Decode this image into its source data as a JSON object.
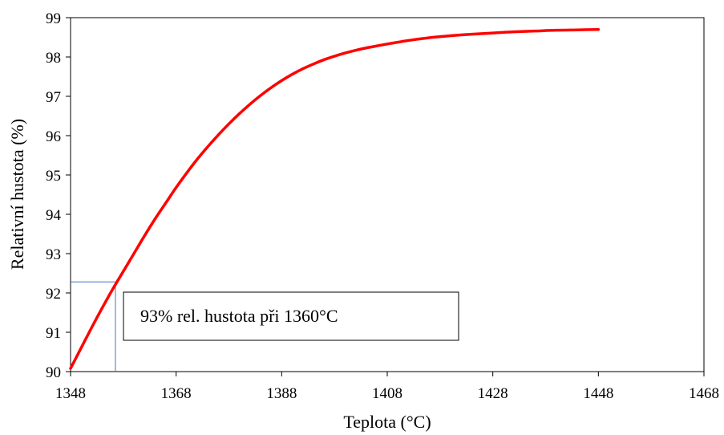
{
  "chart_data": {
    "type": "line",
    "title": "",
    "xlabel": "Teplota (°C)",
    "ylabel": "Relativní hustota (%)",
    "xlim": [
      1348,
      1468
    ],
    "ylim": [
      90,
      99
    ],
    "xticks": [
      1348,
      1368,
      1388,
      1408,
      1428,
      1448,
      1468
    ],
    "yticks": [
      90,
      91,
      92,
      93,
      94,
      95,
      96,
      97,
      98,
      99
    ],
    "grid": false,
    "legend": "none",
    "series": [
      {
        "color": "#ff0000",
        "x": [
          1348,
          1350,
          1352,
          1354,
          1356,
          1358,
          1360,
          1362,
          1364,
          1366,
          1368,
          1370,
          1372,
          1374,
          1376,
          1378,
          1380,
          1382,
          1384,
          1386,
          1388,
          1390,
          1392,
          1394,
          1396,
          1398,
          1400,
          1402,
          1404,
          1406,
          1408,
          1412,
          1416,
          1420,
          1424,
          1428,
          1432,
          1436,
          1440,
          1444,
          1448
        ],
        "y": [
          90.08,
          90.6,
          91.12,
          91.62,
          92.1,
          92.55,
          93.0,
          93.45,
          93.88,
          94.28,
          94.68,
          95.05,
          95.4,
          95.72,
          96.02,
          96.3,
          96.56,
          96.8,
          97.02,
          97.22,
          97.4,
          97.56,
          97.7,
          97.82,
          97.93,
          98.02,
          98.1,
          98.17,
          98.23,
          98.28,
          98.33,
          98.42,
          98.49,
          98.54,
          98.58,
          98.61,
          98.64,
          98.66,
          98.68,
          98.69,
          98.7
        ]
      }
    ],
    "reference_lines": {
      "color": "#4472c4",
      "x": 1356.5,
      "y": 92.28
    },
    "annotation": {
      "text": "93% rel. hustota  při 1360°C"
    }
  }
}
